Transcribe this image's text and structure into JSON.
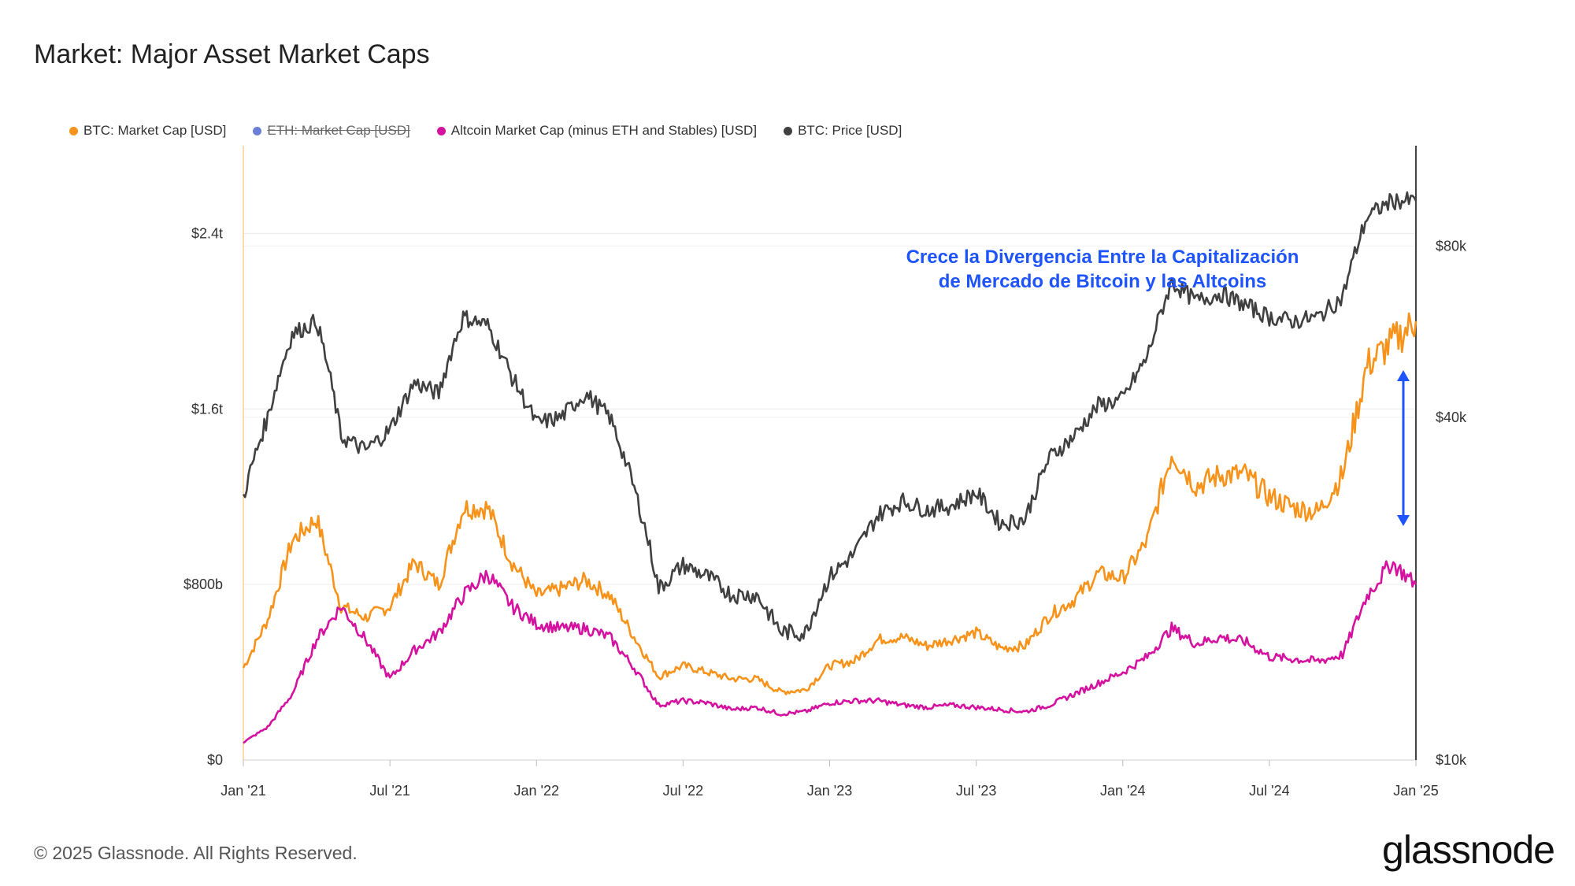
{
  "title": "Market: Major Asset Market Caps",
  "legend": [
    {
      "label": "BTC: Market Cap [USD]",
      "color": "#f7931a",
      "disabled": false
    },
    {
      "label": "ETH: Market Cap [USD]",
      "color": "#6a7fd8",
      "disabled": true
    },
    {
      "label": "Altcoin Market Cap (minus ETH and Stables) [USD]",
      "color": "#d4129f",
      "disabled": false
    },
    {
      "label": "BTC: Price [USD]",
      "color": "#404040",
      "disabled": false
    }
  ],
  "annotation": {
    "line1": "Crece la Divergencia Entre la Capitalización",
    "line2": "de Mercado de Bitcoin y las Altcoins",
    "color": "#1e54ff"
  },
  "footer": "© 2025 Glassnode. All Rights Reserved.",
  "logo": "glassnode",
  "chart_data": {
    "type": "line",
    "x_ticks": [
      "Jan '21",
      "Jul '21",
      "Jan '22",
      "Jul '22",
      "Jan '23",
      "Jul '23",
      "Jan '24",
      "Jul '24",
      "Jan '25"
    ],
    "x": [
      "2021-01",
      "2021-02",
      "2021-03",
      "2021-04",
      "2021-05",
      "2021-06",
      "2021-07",
      "2021-08",
      "2021-09",
      "2021-10",
      "2021-11",
      "2021-12",
      "2022-01",
      "2022-02",
      "2022-03",
      "2022-04",
      "2022-05",
      "2022-06",
      "2022-07",
      "2022-08",
      "2022-09",
      "2022-10",
      "2022-11",
      "2022-12",
      "2023-01",
      "2023-02",
      "2023-03",
      "2023-04",
      "2023-05",
      "2023-06",
      "2023-07",
      "2023-08",
      "2023-09",
      "2023-10",
      "2023-11",
      "2023-12",
      "2024-01",
      "2024-02",
      "2024-03",
      "2024-04",
      "2024-05",
      "2024-06",
      "2024-07",
      "2024-08",
      "2024-09",
      "2024-10",
      "2024-11",
      "2024-12",
      "2025-01"
    ],
    "left_axis": {
      "ticks": [
        "$0",
        "$800b",
        "$1.6t",
        "$2.4t"
      ],
      "tick_values": [
        0,
        800,
        1600,
        2400
      ],
      "unit": "billions USD",
      "range": [
        0,
        2800
      ]
    },
    "right_axis": {
      "ticks": [
        "$10k",
        "$40k",
        "$80k"
      ],
      "tick_values": [
        10000,
        40000,
        80000
      ],
      "scale": "log",
      "range": [
        10000,
        120000
      ]
    },
    "series": [
      {
        "name": "BTC: Market Cap [USD]",
        "axis": "left",
        "color": "#f7931a",
        "values": [
          420,
          640,
          1000,
          1100,
          700,
          650,
          700,
          900,
          800,
          1150,
          1150,
          900,
          750,
          780,
          820,
          750,
          560,
          380,
          430,
          400,
          370,
          370,
          310,
          320,
          430,
          450,
          550,
          560,
          520,
          550,
          580,
          510,
          520,
          660,
          730,
          850,
          830,
          1000,
          1400,
          1250,
          1300,
          1300,
          1200,
          1150,
          1130,
          1300,
          1800,
          1900,
          2000
        ]
      },
      {
        "name": "Altcoin Market Cap (minus ETH and Stables) [USD]",
        "axis": "left",
        "color": "#d4129f",
        "values": [
          80,
          150,
          300,
          550,
          700,
          550,
          370,
          500,
          580,
          750,
          850,
          700,
          620,
          600,
          600,
          560,
          420,
          250,
          270,
          260,
          230,
          240,
          210,
          220,
          260,
          270,
          270,
          250,
          240,
          250,
          240,
          230,
          220,
          250,
          300,
          350,
          400,
          470,
          600,
          530,
          560,
          540,
          470,
          460,
          450,
          480,
          750,
          900,
          800
        ]
      },
      {
        "name": "BTC: Price [USD]",
        "axis": "right",
        "color": "#404040",
        "values": [
          29000,
          40000,
          56000,
          59000,
          37000,
          35000,
          38000,
          46000,
          44000,
          60000,
          58000,
          47000,
          39000,
          40000,
          44000,
          40000,
          30000,
          20000,
          22000,
          21000,
          19500,
          19500,
          16800,
          16700,
          21000,
          23000,
          27000,
          28500,
          27500,
          28000,
          29500,
          26000,
          26500,
          34000,
          37000,
          42000,
          43000,
          51000,
          69000,
          64000,
          66000,
          63000,
          60000,
          59000,
          60000,
          65000,
          90000,
          96000,
          96000
        ]
      }
    ]
  }
}
